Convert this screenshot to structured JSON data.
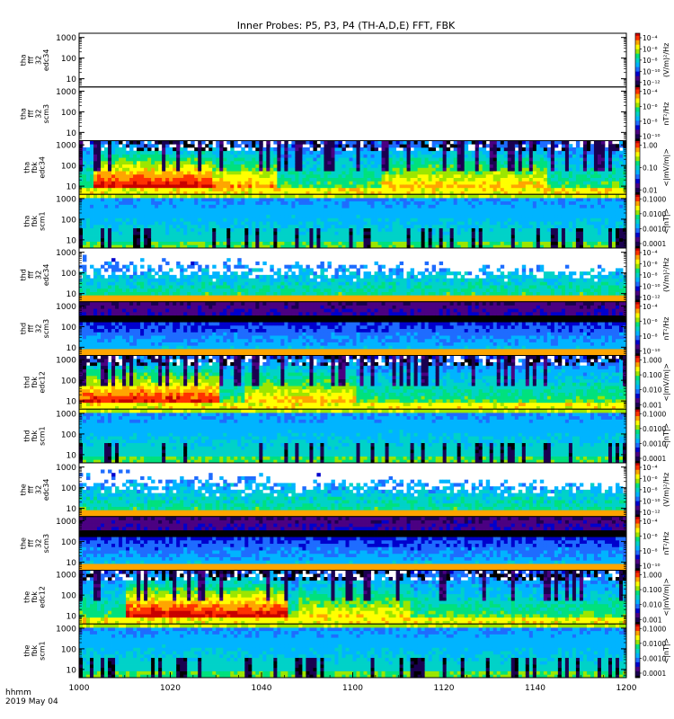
{
  "chart_data": {
    "type": "heatmap",
    "title": "Inner Probes: P5, P3, P4 (TH-A,D,E) FFT, FBK",
    "x_time_label_line1": "hhmm",
    "x_time_label_line2": "2019 May 04",
    "x_ticks": [
      "1000",
      "1020",
      "1040",
      "1100",
      "1120",
      "1140",
      "1200"
    ],
    "x_minor_per_major": 4,
    "y_scale": "log",
    "y_range": [
      4,
      1600
    ],
    "colormap": [
      "#000000",
      "#1a0050",
      "#4b0082",
      "#0000cd",
      "#1e6cff",
      "#00b4ff",
      "#00d2c8",
      "#00e17d",
      "#9ce600",
      "#ffff00",
      "#ffa500",
      "#ff3200",
      "#c80000"
    ],
    "panels": [
      {
        "label_lines": [
          "tha",
          "fff",
          "32",
          "edc34"
        ],
        "y_ticks": [
          "10",
          "100",
          "1000"
        ],
        "colorbar_ticks": [
          "10⁻⁴",
          "10⁻⁶",
          "10⁻⁸",
          "10⁻¹⁰",
          "10⁻¹²"
        ],
        "colorbar_label": "(V/m)²/Hz",
        "empty": true
      },
      {
        "label_lines": [
          "tha",
          "fff",
          "32",
          "scm3"
        ],
        "y_ticks": [
          "10",
          "100",
          "1000"
        ],
        "colorbar_ticks": [
          "10⁻⁴",
          "10⁻⁶",
          "10⁻⁸",
          "10⁻¹⁰"
        ],
        "colorbar_label": "nT²/Hz",
        "empty": true
      },
      {
        "label_lines": [
          "tha",
          "fbk",
          "edc34"
        ],
        "y_ticks": [
          "10",
          "100",
          "1000"
        ],
        "colorbar_ticks": [
          "1.00",
          "0.10",
          "0.01"
        ],
        "colorbar_label": "<|mV/m|>",
        "empty": false,
        "pattern": "fbk_edc",
        "burst_a": [
          [
            0.02,
            0.22,
            1.0
          ],
          [
            0.11,
            0.25,
            0.6
          ],
          [
            0.55,
            0.3,
            0.5
          ]
        ]
      },
      {
        "label_lines": [
          "tha",
          "fbk",
          "scm1"
        ],
        "y_ticks": [
          "10",
          "100",
          "1000"
        ],
        "colorbar_ticks": [
          "0.1000",
          "0.0100",
          "0.0010",
          "0.0001"
        ],
        "colorbar_label": "<|nT|>",
        "empty": false,
        "pattern": "fbk_scm"
      },
      {
        "label_lines": [
          "thd",
          "fff",
          "32",
          "edc34"
        ],
        "y_ticks": [
          "10",
          "100",
          "1000"
        ],
        "colorbar_ticks": [
          "10⁻⁴",
          "10⁻⁶",
          "10⁻⁸",
          "10⁻¹⁰",
          "10⁻¹²"
        ],
        "colorbar_label": "(V/m)²/Hz",
        "empty": false,
        "pattern": "fff_edc"
      },
      {
        "label_lines": [
          "thd",
          "fff",
          "32",
          "scm3"
        ],
        "y_ticks": [
          "10",
          "100",
          "1000"
        ],
        "colorbar_ticks": [
          "10⁻⁴",
          "10⁻⁶",
          "10⁻⁸",
          "10⁻¹⁰"
        ],
        "colorbar_label": "nT²/Hz",
        "empty": false,
        "pattern": "fff_scm"
      },
      {
        "label_lines": [
          "thd",
          "fbk",
          "edc12"
        ],
        "y_ticks": [
          "10",
          "100",
          "1000"
        ],
        "colorbar_ticks": [
          "1.000",
          "0.100",
          "0.010",
          "0.001"
        ],
        "colorbar_label": "<|mV/m|>",
        "empty": false,
        "pattern": "fbk_edc",
        "burst_a": [
          [
            0.0,
            0.25,
            0.9
          ],
          [
            0.3,
            0.2,
            0.5
          ]
        ]
      },
      {
        "label_lines": [
          "thd",
          "fbk",
          "scm1"
        ],
        "y_ticks": [
          "10",
          "100",
          "1000"
        ],
        "colorbar_ticks": [
          "0.1000",
          "0.0100",
          "0.0010",
          "0.0001"
        ],
        "colorbar_label": "<|nT|>",
        "empty": false,
        "pattern": "fbk_scm"
      },
      {
        "label_lines": [
          "the",
          "fff",
          "32",
          "edc34"
        ],
        "y_ticks": [
          "10",
          "100",
          "1000"
        ],
        "colorbar_ticks": [
          "10⁻⁴",
          "10⁻⁶",
          "10⁻⁸",
          "10⁻¹⁰",
          "10⁻¹²"
        ],
        "colorbar_label": "(V/m)²/Hz",
        "empty": false,
        "pattern": "fff_edc"
      },
      {
        "label_lines": [
          "the",
          "fff",
          "32",
          "scm3"
        ],
        "y_ticks": [
          "10",
          "100",
          "1000"
        ],
        "colorbar_ticks": [
          "10⁻⁴",
          "10⁻⁶",
          "10⁻⁸",
          "10⁻¹⁰"
        ],
        "colorbar_label": "nT²/Hz",
        "empty": false,
        "pattern": "fff_scm"
      },
      {
        "label_lines": [
          "the",
          "fbk",
          "edc12"
        ],
        "y_ticks": [
          "10",
          "100",
          "1000"
        ],
        "colorbar_ticks": [
          "1.000",
          "0.100",
          "0.010",
          "0.001"
        ],
        "colorbar_label": "<|mV/m|>",
        "empty": false,
        "pattern": "fbk_edc",
        "burst_a": [
          [
            0.08,
            0.3,
            1.0
          ],
          [
            0.4,
            0.2,
            0.4
          ]
        ]
      },
      {
        "label_lines": [
          "the",
          "fbk",
          "scm1"
        ],
        "y_ticks": [
          "10",
          "100",
          "1000"
        ],
        "colorbar_ticks": [
          "0.1000",
          "0.0100",
          "0.0010",
          "0.0001"
        ],
        "colorbar_label": "<|nT|>",
        "empty": false,
        "pattern": "fbk_scm"
      }
    ]
  }
}
